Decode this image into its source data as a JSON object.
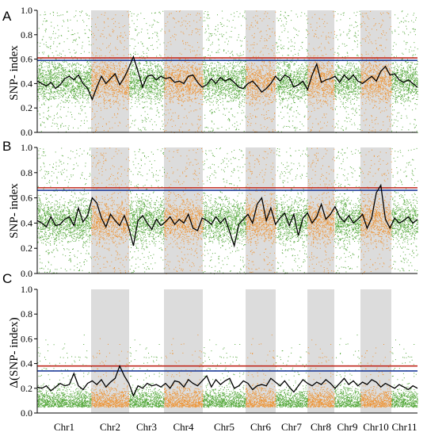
{
  "colors": {
    "green": "#3a9a1c",
    "orange": "#f08a1c",
    "band_gray": "#dcdcdc",
    "red_line": "#c0281e",
    "blue_line": "#1e3c9a",
    "black_line": "#000000"
  },
  "chart_data": [
    {
      "panel": "A",
      "type": "scatter",
      "ylabel": "SNP- index",
      "ylim": [
        0,
        1.0
      ],
      "yticks": [
        "0.0",
        "0.2",
        "0.4",
        "0.6",
        "0.8",
        "1.0"
      ],
      "thresholds": {
        "red": 0.61,
        "blue": 0.59
      },
      "sliding_window_mean": [
        0.42,
        0.4,
        0.38,
        0.41,
        0.36,
        0.39,
        0.44,
        0.46,
        0.43,
        0.47,
        0.4,
        0.36,
        0.27,
        0.37,
        0.46,
        0.4,
        0.44,
        0.48,
        0.39,
        0.45,
        0.53,
        0.62,
        0.5,
        0.37,
        0.46,
        0.47,
        0.43,
        0.46,
        0.44,
        0.45,
        0.41,
        0.42,
        0.4,
        0.46,
        0.47,
        0.41,
        0.37,
        0.39,
        0.44,
        0.4,
        0.45,
        0.42,
        0.44,
        0.41,
        0.37,
        0.36,
        0.4,
        0.42,
        0.38,
        0.33,
        0.36,
        0.4,
        0.46,
        0.42,
        0.47,
        0.45,
        0.37,
        0.39,
        0.42,
        0.35,
        0.47,
        0.56,
        0.41,
        0.43,
        0.44,
        0.46,
        0.41,
        0.47,
        0.43,
        0.47,
        0.42,
        0.4,
        0.43,
        0.46,
        0.42,
        0.5,
        0.54,
        0.47,
        0.48,
        0.43,
        0.41,
        0.43,
        0.4,
        0.37
      ]
    },
    {
      "panel": "B",
      "type": "scatter",
      "ylabel": "SNP- index",
      "ylim": [
        0,
        1.0
      ],
      "yticks": [
        "0.0",
        "0.2",
        "0.4",
        "0.6",
        "0.8",
        "1.0"
      ],
      "thresholds": {
        "red": 0.68,
        "blue": 0.66
      },
      "sliding_window_mean": [
        0.42,
        0.4,
        0.37,
        0.45,
        0.38,
        0.39,
        0.43,
        0.45,
        0.38,
        0.52,
        0.41,
        0.46,
        0.6,
        0.56,
        0.44,
        0.37,
        0.47,
        0.42,
        0.38,
        0.46,
        0.36,
        0.22,
        0.42,
        0.46,
        0.4,
        0.35,
        0.43,
        0.38,
        0.41,
        0.45,
        0.39,
        0.43,
        0.4,
        0.47,
        0.36,
        0.34,
        0.44,
        0.42,
        0.39,
        0.45,
        0.4,
        0.44,
        0.33,
        0.22,
        0.39,
        0.43,
        0.47,
        0.4,
        0.55,
        0.6,
        0.42,
        0.52,
        0.39,
        0.44,
        0.48,
        0.38,
        0.47,
        0.3,
        0.44,
        0.48,
        0.4,
        0.45,
        0.55,
        0.43,
        0.47,
        0.53,
        0.45,
        0.41,
        0.46,
        0.4,
        0.43,
        0.47,
        0.36,
        0.44,
        0.64,
        0.7,
        0.43,
        0.36,
        0.44,
        0.4,
        0.42,
        0.45,
        0.4,
        0.43
      ]
    },
    {
      "panel": "C",
      "type": "scatter",
      "ylabel": "Δ(SNP- index)",
      "ylim": [
        0,
        1.0
      ],
      "yticks": [
        "0.0",
        "0.2",
        "0.4",
        "0.6",
        "0.8",
        "1.0"
      ],
      "thresholds": {
        "red": 0.38,
        "blue": 0.34
      },
      "x_category_labels": [
        "Chr1",
        "Chr2",
        "Chr3",
        "Chr4",
        "Chr5",
        "Chr6",
        "Chr7",
        "Chr8",
        "Chr9",
        "Chr10",
        "Chr11"
      ],
      "sliding_window_mean": [
        0.21,
        0.2,
        0.22,
        0.18,
        0.21,
        0.24,
        0.22,
        0.23,
        0.32,
        0.22,
        0.19,
        0.24,
        0.26,
        0.23,
        0.27,
        0.21,
        0.25,
        0.28,
        0.38,
        0.3,
        0.24,
        0.14,
        0.22,
        0.2,
        0.24,
        0.22,
        0.23,
        0.21,
        0.24,
        0.2,
        0.26,
        0.25,
        0.21,
        0.27,
        0.24,
        0.22,
        0.26,
        0.3,
        0.21,
        0.27,
        0.23,
        0.26,
        0.28,
        0.2,
        0.22,
        0.26,
        0.24,
        0.19,
        0.22,
        0.23,
        0.22,
        0.28,
        0.25,
        0.22,
        0.26,
        0.21,
        0.17,
        0.22,
        0.27,
        0.24,
        0.22,
        0.25,
        0.23,
        0.27,
        0.24,
        0.2,
        0.24,
        0.28,
        0.23,
        0.26,
        0.22,
        0.25,
        0.23,
        0.27,
        0.25,
        0.21,
        0.24,
        0.22,
        0.2,
        0.23,
        0.21,
        0.19,
        0.22,
        0.2
      ]
    }
  ],
  "shared": {
    "chromosomes": [
      {
        "name": "Chr1",
        "color": "green",
        "band": false
      },
      {
        "name": "Chr2",
        "color": "orange",
        "band": true
      },
      {
        "name": "Chr3",
        "color": "green",
        "band": false
      },
      {
        "name": "Chr4",
        "color": "orange",
        "band": true
      },
      {
        "name": "Chr5",
        "color": "green",
        "band": false
      },
      {
        "name": "Chr6",
        "color": "orange",
        "band": true
      },
      {
        "name": "Chr7",
        "color": "green",
        "band": false
      },
      {
        "name": "Chr8",
        "color": "orange",
        "band": true
      },
      {
        "name": "Chr9",
        "color": "green",
        "band": false
      },
      {
        "name": "Chr10",
        "color": "orange",
        "band": true
      },
      {
        "name": "Chr11",
        "color": "green",
        "band": false
      }
    ]
  }
}
